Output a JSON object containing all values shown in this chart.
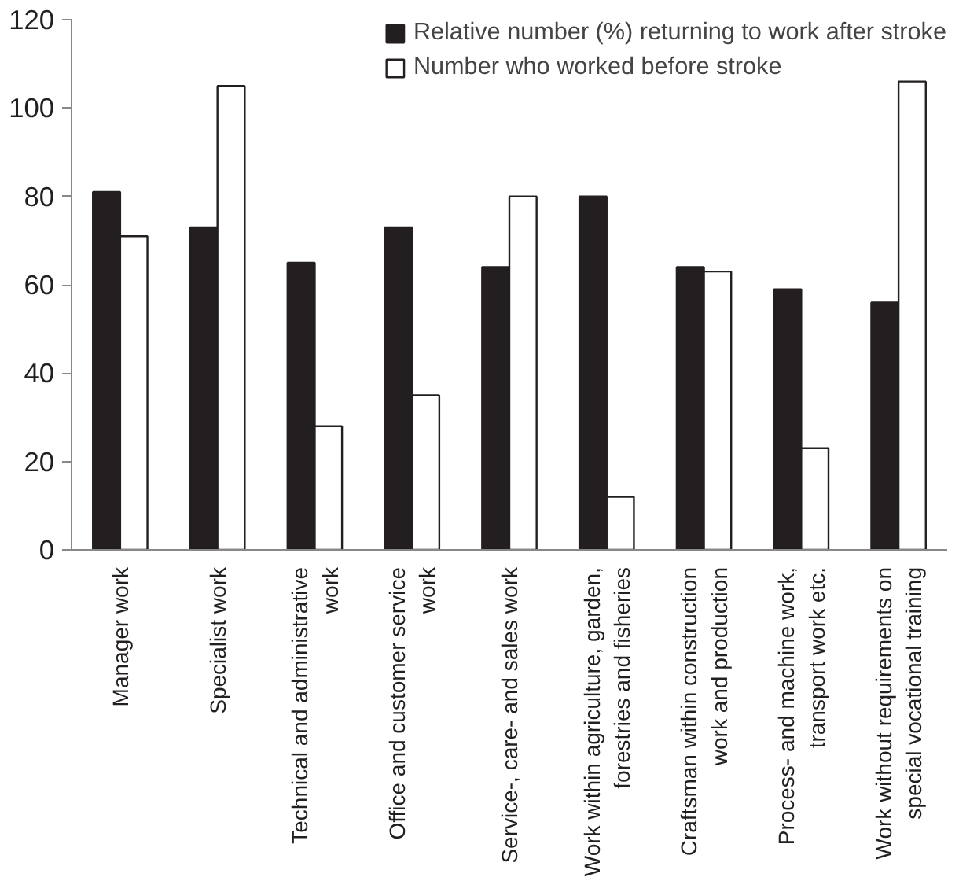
{
  "chart_data": {
    "type": "bar",
    "categories": [
      "Manager work",
      "Specialist work",
      "Technical and administrative\nwork",
      "Office and customer service\nwork",
      "Service-, care- and sales work",
      "Work within agriculture, garden,\nforestries and fisheries",
      "Craftsman within construction\nwork and production",
      "Process- and machine work,\ntransport work etc.",
      "Work without requirements on\nspecial vocational training"
    ],
    "series": [
      {
        "name": "Relative number (%) returning to work after stroke",
        "color": "#231f20",
        "values": [
          81,
          73,
          65,
          73,
          64,
          80,
          64,
          59,
          56
        ]
      },
      {
        "name": "Number who worked before stroke",
        "color": "#ffffff",
        "values": [
          71,
          105,
          28,
          35,
          80,
          12,
          63,
          23,
          106
        ]
      }
    ],
    "ylim": [
      0,
      120
    ],
    "yticks": [
      0,
      20,
      40,
      60,
      80,
      100,
      120
    ],
    "grid": false,
    "legend": "top right"
  }
}
